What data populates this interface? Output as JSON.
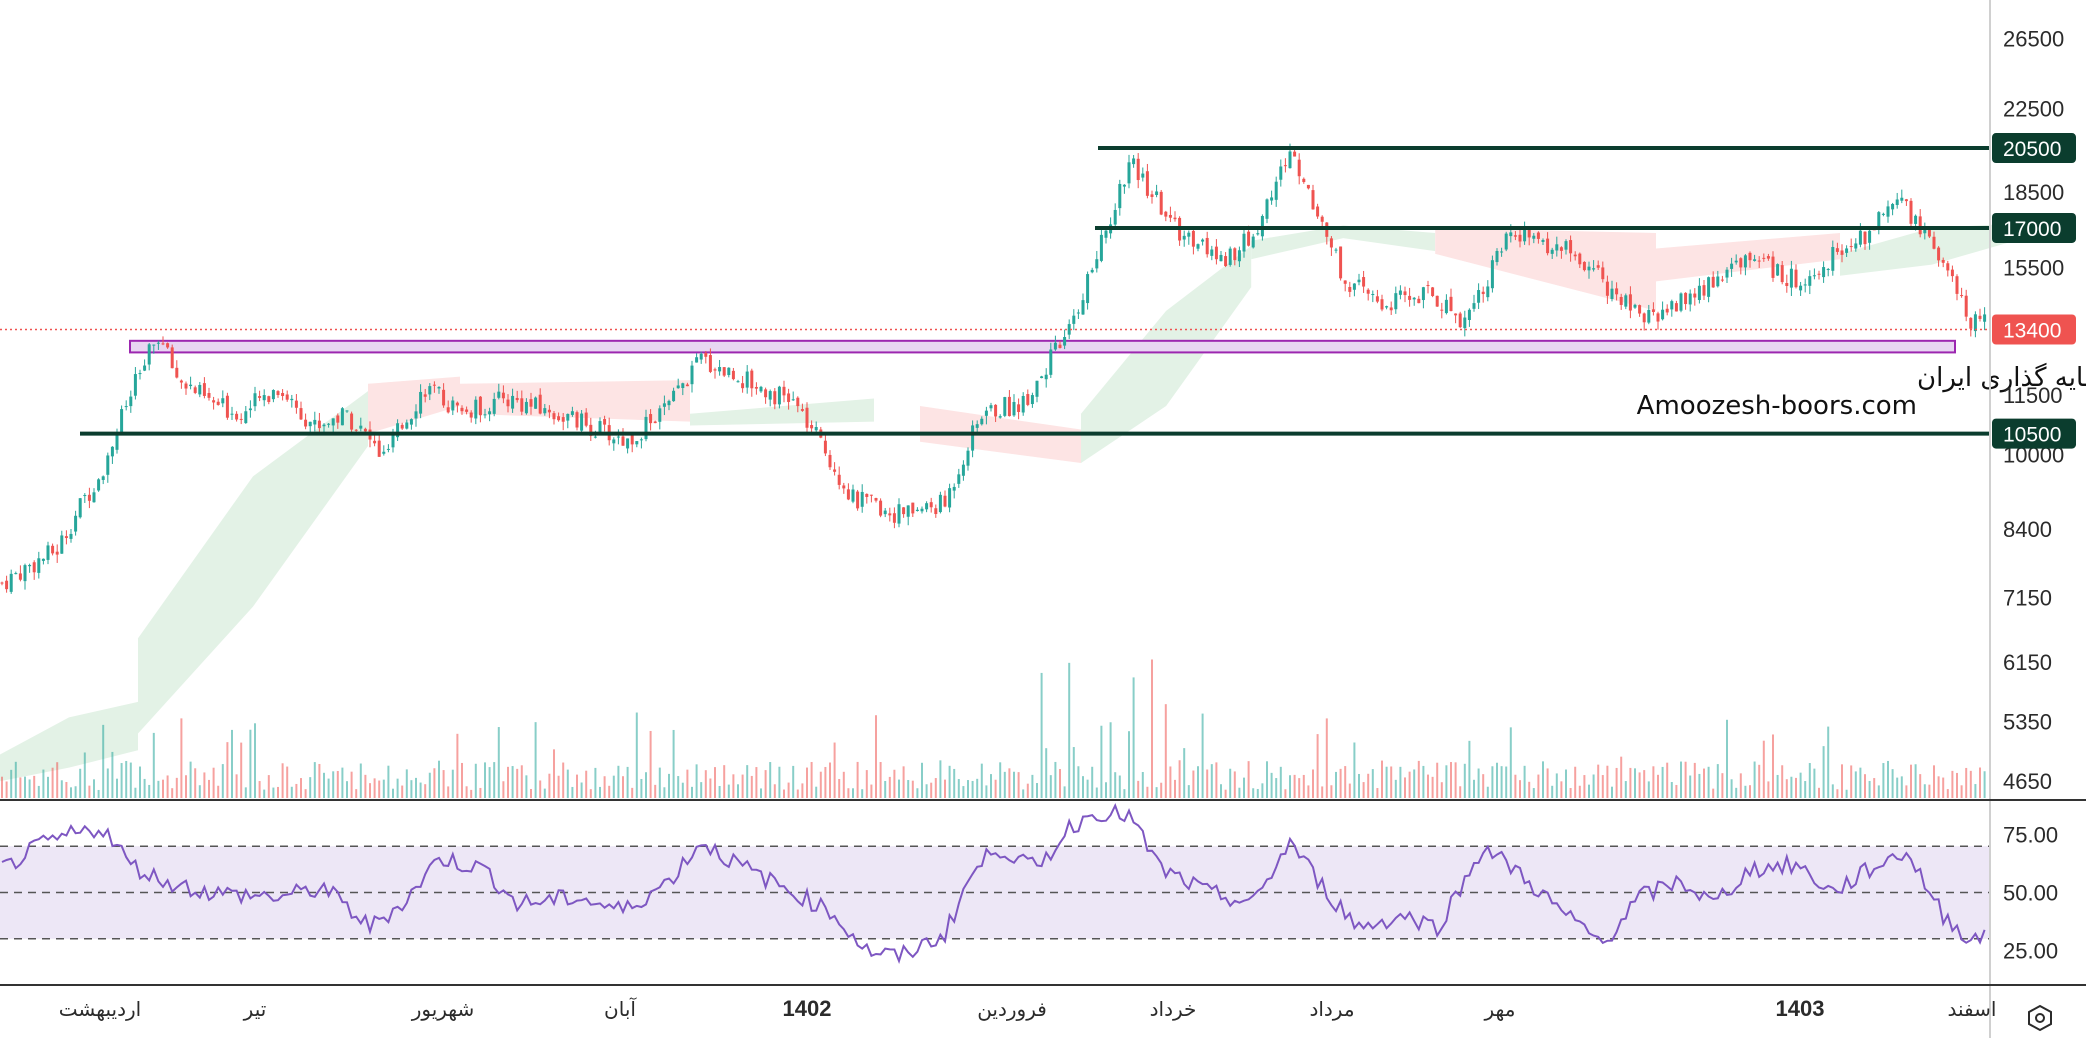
{
  "chart_data": {
    "type": "candlestick",
    "price_axis": {
      "scale": "log",
      "ticks": [
        26500,
        22500,
        18500,
        15500,
        11500,
        10000,
        8400,
        7150,
        6150,
        5350,
        4650
      ],
      "ylim": [
        4450,
        29000
      ]
    },
    "time_axis": {
      "labels": [
        {
          "label": "اردیبهشت",
          "bold": false
        },
        {
          "label": "تیر",
          "bold": false
        },
        {
          "label": "شهریور",
          "bold": false
        },
        {
          "label": "آبان",
          "bold": false
        },
        {
          "label": "1402",
          "bold": true
        },
        {
          "label": "فروردین",
          "bold": false
        },
        {
          "label": "خرداد",
          "bold": false
        },
        {
          "label": "مرداد",
          "bold": false
        },
        {
          "label": "مهر",
          "bold": false
        },
        {
          "label": "1403",
          "bold": true
        },
        {
          "label": "اسفند",
          "bold": false
        }
      ]
    },
    "trend_path": [
      [
        0,
        7400
      ],
      [
        12,
        8000
      ],
      [
        22,
        9700
      ],
      [
        28,
        11500
      ],
      [
        34,
        13200
      ],
      [
        38,
        12000
      ],
      [
        45,
        11300
      ],
      [
        52,
        11000
      ],
      [
        60,
        11700
      ],
      [
        68,
        10700
      ],
      [
        75,
        11000
      ],
      [
        83,
        9900
      ],
      [
        92,
        11700
      ],
      [
        100,
        11000
      ],
      [
        110,
        11400
      ],
      [
        125,
        10800
      ],
      [
        136,
        10300
      ],
      [
        145,
        11200
      ],
      [
        152,
        12500
      ],
      [
        160,
        12000
      ],
      [
        172,
        11300
      ],
      [
        185,
        9000
      ],
      [
        195,
        8700
      ],
      [
        205,
        8900
      ],
      [
        213,
        11000
      ],
      [
        222,
        11300
      ],
      [
        232,
        13300
      ],
      [
        240,
        16800
      ],
      [
        245,
        19800
      ],
      [
        255,
        17000
      ],
      [
        265,
        15800
      ],
      [
        272,
        16600
      ],
      [
        280,
        20300
      ],
      [
        292,
        15000
      ],
      [
        300,
        14200
      ],
      [
        310,
        14600
      ],
      [
        318,
        13700
      ],
      [
        328,
        16700
      ],
      [
        340,
        16200
      ],
      [
        350,
        14700
      ],
      [
        356,
        13700
      ],
      [
        368,
        14500
      ],
      [
        380,
        16000
      ],
      [
        390,
        15000
      ],
      [
        405,
        16700
      ],
      [
        412,
        18400
      ],
      [
        420,
        16200
      ],
      [
        428,
        13600
      ]
    ],
    "price_lines": [
      {
        "value": 20500,
        "label": "20500"
      },
      {
        "value": 17000,
        "label": "17000"
      },
      {
        "value": 10500,
        "label": "10500"
      }
    ],
    "current_price": {
      "value": 13400,
      "label": "13400"
    },
    "support_zone": [
      12700,
      13050
    ],
    "ichimoku_cloud": {
      "bullish_color": "#e3f2e6",
      "bearish_color": "#fde4e4",
      "segments": [
        {
          "from": 0,
          "to": 30,
          "upper": [
            4950,
            5400,
            5600
          ],
          "lower": [
            4650,
            4800,
            5000
          ],
          "kind": "bullish"
        },
        {
          "from": 30,
          "to": 80,
          "upper": [
            6500,
            9500,
            11600
          ],
          "lower": [
            5200,
            7000,
            10200
          ],
          "kind": "bullish"
        },
        {
          "from": 80,
          "to": 100,
          "upper": [
            11800,
            12000
          ],
          "lower": [
            10500,
            11200
          ],
          "kind": "bearish"
        },
        {
          "from": 100,
          "to": 150,
          "upper": [
            11800,
            11900
          ],
          "lower": [
            11000,
            10800
          ],
          "kind": "bearish"
        },
        {
          "from": 150,
          "to": 190,
          "upper": [
            11000,
            11400
          ],
          "lower": [
            10700,
            10800
          ],
          "kind": "bullish"
        },
        {
          "from": 200,
          "to": 235,
          "upper": [
            11200,
            10600
          ],
          "lower": [
            10300,
            9800
          ],
          "kind": "bearish"
        },
        {
          "from": 235,
          "to": 272,
          "upper": [
            11000,
            14000,
            16300
          ],
          "lower": [
            9800,
            11200,
            14800
          ],
          "kind": "bullish"
        },
        {
          "from": 272,
          "to": 312,
          "upper": [
            16500,
            17100,
            16800
          ],
          "lower": [
            15800,
            16600,
            16100
          ],
          "kind": "bullish"
        },
        {
          "from": 312,
          "to": 360,
          "upper": [
            17000,
            16800
          ],
          "lower": [
            16000,
            14000
          ],
          "kind": "bearish"
        },
        {
          "from": 360,
          "to": 400,
          "upper": [
            16200,
            16800
          ],
          "lower": [
            15000,
            15800
          ],
          "kind": "bearish"
        },
        {
          "from": 400,
          "to": 440,
          "upper": [
            16000,
            17000,
            17200
          ],
          "lower": [
            15200,
            15600,
            16600
          ],
          "kind": "bullish"
        }
      ]
    },
    "volume": {
      "spike_bars": [
        226,
        232,
        246,
        250
      ]
    },
    "rsi": {
      "ticks": [
        "75.00",
        "50.00",
        "25.00"
      ],
      "ylim": [
        10,
        90
      ],
      "band": [
        30,
        70
      ],
      "midline": 50,
      "path": [
        [
          0,
          60
        ],
        [
          8,
          70
        ],
        [
          15,
          75
        ],
        [
          22,
          78
        ],
        [
          28,
          62
        ],
        [
          35,
          55
        ],
        [
          45,
          50
        ],
        [
          60,
          48
        ],
        [
          70,
          52
        ],
        [
          80,
          35
        ],
        [
          88,
          47
        ],
        [
          95,
          65
        ],
        [
          105,
          60
        ],
        [
          112,
          45
        ],
        [
          125,
          48
        ],
        [
          135,
          42
        ],
        [
          145,
          55
        ],
        [
          152,
          72
        ],
        [
          160,
          62
        ],
        [
          172,
          50
        ],
        [
          180,
          42
        ],
        [
          188,
          25
        ],
        [
          195,
          22
        ],
        [
          205,
          32
        ],
        [
          210,
          55
        ],
        [
          216,
          70
        ],
        [
          225,
          60
        ],
        [
          232,
          78
        ],
        [
          238,
          85
        ],
        [
          245,
          83
        ],
        [
          252,
          60
        ],
        [
          262,
          50
        ],
        [
          272,
          45
        ],
        [
          280,
          72
        ],
        [
          288,
          50
        ],
        [
          295,
          35
        ],
        [
          305,
          40
        ],
        [
          312,
          35
        ],
        [
          318,
          55
        ],
        [
          322,
          70
        ],
        [
          330,
          58
        ],
        [
          340,
          40
        ],
        [
          348,
          28
        ],
        [
          356,
          48
        ],
        [
          365,
          55
        ],
        [
          372,
          45
        ],
        [
          380,
          60
        ],
        [
          390,
          62
        ],
        [
          398,
          50
        ],
        [
          406,
          60
        ],
        [
          414,
          68
        ],
        [
          422,
          40
        ],
        [
          428,
          30
        ]
      ]
    }
  },
  "watermark": {
    "line1": "انجمن خبرگان سرمایه گذاری ایران",
    "line2": "Amoozesh-boors.com"
  },
  "colors": {
    "up": "#26a69a",
    "down": "#ef5350",
    "support_line": "#0b3d2e",
    "zone_border": "#9c27b0",
    "zone_fill": "#e8d6f2",
    "rsi_line": "#7e57c2",
    "rsi_band": "#ede7f6",
    "current_price": "#ef5350"
  },
  "settings_icon": "hexagon-settings-icon"
}
